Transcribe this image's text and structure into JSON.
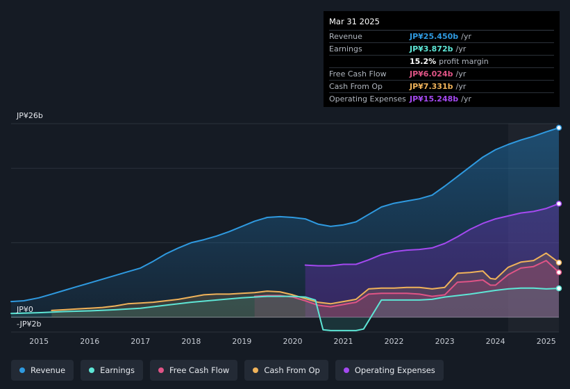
{
  "tooltip": {
    "date": "Mar 31 2025",
    "rows": [
      {
        "label": "Revenue",
        "value": "JP¥25.450b",
        "unit": "/yr",
        "color": "#2f9ae0"
      },
      {
        "label": "Earnings",
        "value": "JP¥3.872b",
        "unit": "/yr",
        "color": "#5ee6d6"
      },
      {
        "label": "",
        "value": "15.2%",
        "unit": "profit margin",
        "color": "#ffffff"
      },
      {
        "label": "Free Cash Flow",
        "value": "JP¥6.024b",
        "unit": "/yr",
        "color": "#e05486"
      },
      {
        "label": "Cash From Op",
        "value": "JP¥7.331b",
        "unit": "/yr",
        "color": "#f0b35a"
      },
      {
        "label": "Operating Expenses",
        "value": "JP¥15.248b",
        "unit": "/yr",
        "color": "#a449f0"
      }
    ]
  },
  "legend": [
    {
      "label": "Revenue",
      "color": "#2f9ae0"
    },
    {
      "label": "Earnings",
      "color": "#5ee6d6"
    },
    {
      "label": "Free Cash Flow",
      "color": "#e05486"
    },
    {
      "label": "Cash From Op",
      "color": "#f0b35a"
    },
    {
      "label": "Operating Expenses",
      "color": "#a449f0"
    }
  ],
  "chart_data": {
    "type": "area",
    "title": "",
    "xlabel": "",
    "ylabel": "",
    "xlim": [
      2014.45,
      2025.25
    ],
    "ylim": [
      -2,
      26
    ],
    "ytick_labels": [
      "JP¥26b",
      "JP¥0",
      "-JP¥2b"
    ],
    "x_ticks": [
      2015,
      2016,
      2017,
      2018,
      2019,
      2020,
      2021,
      2022,
      2023,
      2024,
      2025
    ],
    "x_tick_labels": [
      "2015",
      "2016",
      "2017",
      "2018",
      "2019",
      "2020",
      "2021",
      "2022",
      "2023",
      "2024",
      "2025"
    ],
    "highlight_start": 2024.25,
    "series": [
      {
        "name": "Revenue",
        "color": "#2f9ae0",
        "points": [
          [
            2014.45,
            2.1
          ],
          [
            2014.7,
            2.2
          ],
          [
            2015.0,
            2.6
          ],
          [
            2015.25,
            3.1
          ],
          [
            2015.5,
            3.6
          ],
          [
            2015.75,
            4.1
          ],
          [
            2016.0,
            4.6
          ],
          [
            2016.25,
            5.1
          ],
          [
            2016.5,
            5.6
          ],
          [
            2016.75,
            6.1
          ],
          [
            2017.0,
            6.6
          ],
          [
            2017.25,
            7.5
          ],
          [
            2017.5,
            8.5
          ],
          [
            2017.75,
            9.3
          ],
          [
            2018.0,
            10.0
          ],
          [
            2018.25,
            10.4
          ],
          [
            2018.5,
            10.9
          ],
          [
            2018.75,
            11.5
          ],
          [
            2019.0,
            12.2
          ],
          [
            2019.25,
            12.9
          ],
          [
            2019.5,
            13.4
          ],
          [
            2019.75,
            13.5
          ],
          [
            2020.0,
            13.4
          ],
          [
            2020.25,
            13.2
          ],
          [
            2020.5,
            12.5
          ],
          [
            2020.75,
            12.2
          ],
          [
            2021.0,
            12.4
          ],
          [
            2021.25,
            12.8
          ],
          [
            2021.5,
            13.8
          ],
          [
            2021.75,
            14.8
          ],
          [
            2022.0,
            15.3
          ],
          [
            2022.25,
            15.6
          ],
          [
            2022.5,
            15.9
          ],
          [
            2022.75,
            16.4
          ],
          [
            2023.0,
            17.6
          ],
          [
            2023.25,
            18.9
          ],
          [
            2023.5,
            20.2
          ],
          [
            2023.75,
            21.5
          ],
          [
            2024.0,
            22.5
          ],
          [
            2024.25,
            23.2
          ],
          [
            2024.5,
            23.8
          ],
          [
            2024.75,
            24.3
          ],
          [
            2025.0,
            24.9
          ],
          [
            2025.25,
            25.45
          ]
        ]
      },
      {
        "name": "Operating Expenses",
        "color": "#a449f0",
        "points": [
          [
            2020.25,
            7.0
          ],
          [
            2020.5,
            6.9
          ],
          [
            2020.75,
            6.9
          ],
          [
            2021.0,
            7.1
          ],
          [
            2021.25,
            7.1
          ],
          [
            2021.5,
            7.7
          ],
          [
            2021.75,
            8.4
          ],
          [
            2022.0,
            8.8
          ],
          [
            2022.25,
            9.0
          ],
          [
            2022.5,
            9.1
          ],
          [
            2022.75,
            9.3
          ],
          [
            2023.0,
            9.9
          ],
          [
            2023.25,
            10.8
          ],
          [
            2023.5,
            11.8
          ],
          [
            2023.75,
            12.6
          ],
          [
            2024.0,
            13.2
          ],
          [
            2024.25,
            13.6
          ],
          [
            2024.5,
            14.0
          ],
          [
            2024.75,
            14.2
          ],
          [
            2025.0,
            14.6
          ],
          [
            2025.25,
            15.248
          ]
        ]
      },
      {
        "name": "Cash From Op",
        "color": "#f0b35a",
        "points": [
          [
            2015.25,
            0.9
          ],
          [
            2015.5,
            1.0
          ],
          [
            2015.75,
            1.1
          ],
          [
            2016.0,
            1.2
          ],
          [
            2016.25,
            1.3
          ],
          [
            2016.5,
            1.5
          ],
          [
            2016.75,
            1.8
          ],
          [
            2017.0,
            1.9
          ],
          [
            2017.25,
            2.0
          ],
          [
            2017.5,
            2.2
          ],
          [
            2017.75,
            2.4
          ],
          [
            2018.0,
            2.7
          ],
          [
            2018.25,
            3.0
          ],
          [
            2018.5,
            3.1
          ],
          [
            2018.75,
            3.1
          ],
          [
            2019.0,
            3.2
          ],
          [
            2019.25,
            3.3
          ],
          [
            2019.5,
            3.5
          ],
          [
            2019.75,
            3.4
          ],
          [
            2020.0,
            3.0
          ],
          [
            2020.25,
            2.5
          ],
          [
            2020.5,
            2.0
          ],
          [
            2020.75,
            1.8
          ],
          [
            2021.0,
            2.1
          ],
          [
            2021.25,
            2.4
          ],
          [
            2021.5,
            3.8
          ],
          [
            2021.75,
            3.9
          ],
          [
            2022.0,
            3.9
          ],
          [
            2022.25,
            4.0
          ],
          [
            2022.5,
            4.0
          ],
          [
            2022.75,
            3.8
          ],
          [
            2023.0,
            4.0
          ],
          [
            2023.25,
            5.9
          ],
          [
            2023.5,
            6.0
          ],
          [
            2023.75,
            6.2
          ],
          [
            2023.9,
            5.2
          ],
          [
            2024.0,
            5.1
          ],
          [
            2024.25,
            6.7
          ],
          [
            2024.5,
            7.4
          ],
          [
            2024.75,
            7.6
          ],
          [
            2025.0,
            8.6
          ],
          [
            2025.25,
            7.331
          ]
        ]
      },
      {
        "name": "Free Cash Flow",
        "color": "#e05486",
        "points": [
          [
            2019.25,
            2.8
          ],
          [
            2019.5,
            2.9
          ],
          [
            2019.75,
            2.9
          ],
          [
            2020.0,
            2.7
          ],
          [
            2020.25,
            2.2
          ],
          [
            2020.5,
            1.6
          ],
          [
            2020.75,
            1.4
          ],
          [
            2021.0,
            1.7
          ],
          [
            2021.25,
            2.0
          ],
          [
            2021.5,
            3.1
          ],
          [
            2021.75,
            3.2
          ],
          [
            2022.0,
            3.2
          ],
          [
            2022.25,
            3.2
          ],
          [
            2022.5,
            3.1
          ],
          [
            2022.75,
            2.8
          ],
          [
            2023.0,
            3.0
          ],
          [
            2023.25,
            4.7
          ],
          [
            2023.5,
            4.8
          ],
          [
            2023.75,
            5.0
          ],
          [
            2023.9,
            4.3
          ],
          [
            2024.0,
            4.3
          ],
          [
            2024.25,
            5.7
          ],
          [
            2024.5,
            6.6
          ],
          [
            2024.75,
            6.8
          ],
          [
            2025.0,
            7.6
          ],
          [
            2025.25,
            6.024
          ]
        ]
      },
      {
        "name": "Earnings",
        "color": "#5ee6d6",
        "points": [
          [
            2014.45,
            0.5
          ],
          [
            2015.0,
            0.6
          ],
          [
            2015.5,
            0.75
          ],
          [
            2016.0,
            0.85
          ],
          [
            2016.5,
            1.0
          ],
          [
            2017.0,
            1.2
          ],
          [
            2017.5,
            1.6
          ],
          [
            2018.0,
            2.0
          ],
          [
            2018.5,
            2.3
          ],
          [
            2019.0,
            2.6
          ],
          [
            2019.5,
            2.8
          ],
          [
            2020.0,
            2.8
          ],
          [
            2020.25,
            2.7
          ],
          [
            2020.45,
            2.3
          ],
          [
            2020.6,
            -1.7
          ],
          [
            2020.75,
            -1.8
          ],
          [
            2021.0,
            -1.8
          ],
          [
            2021.25,
            -1.8
          ],
          [
            2021.4,
            -1.6
          ],
          [
            2021.75,
            2.3
          ],
          [
            2022.0,
            2.3
          ],
          [
            2022.5,
            2.3
          ],
          [
            2022.75,
            2.4
          ],
          [
            2023.0,
            2.7
          ],
          [
            2023.5,
            3.1
          ],
          [
            2024.0,
            3.6
          ],
          [
            2024.25,
            3.8
          ],
          [
            2024.5,
            3.9
          ],
          [
            2024.75,
            3.9
          ],
          [
            2025.0,
            3.8
          ],
          [
            2025.25,
            3.872
          ]
        ]
      }
    ]
  }
}
